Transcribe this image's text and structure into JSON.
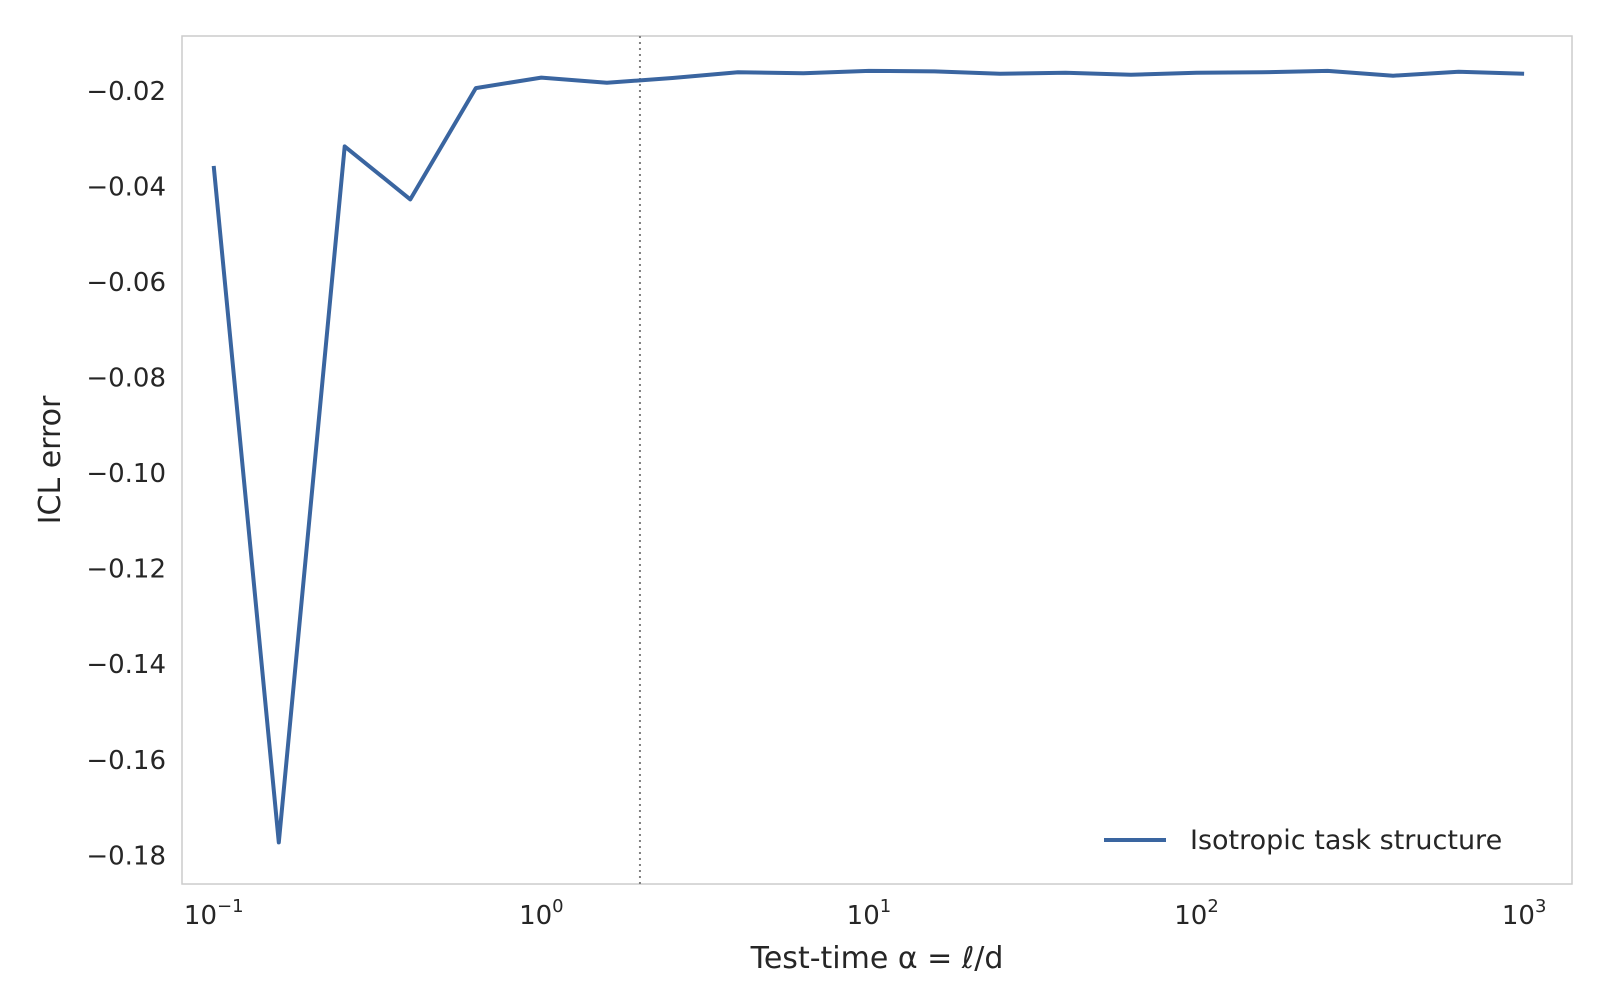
{
  "chart_data": {
    "type": "line",
    "xlabel": "Test-time α = ℓ/d",
    "ylabel": "ICL error",
    "xscale": "log",
    "xlim": [
      0.08,
      1400
    ],
    "ylim": [
      -0.186,
      -0.0085
    ],
    "grid": false,
    "legend_position": "bottom-right",
    "x_ticks": [
      {
        "value": 0.1,
        "base": "10",
        "exp": "−1"
      },
      {
        "value": 1,
        "base": "10",
        "exp": "0"
      },
      {
        "value": 10,
        "base": "10",
        "exp": "1"
      },
      {
        "value": 100,
        "base": "10",
        "exp": "2"
      },
      {
        "value": 1000,
        "base": "10",
        "exp": "3"
      }
    ],
    "y_ticks": [
      {
        "value": -0.02,
        "label": "−0.02"
      },
      {
        "value": -0.04,
        "label": "−0.04"
      },
      {
        "value": -0.06,
        "label": "−0.06"
      },
      {
        "value": -0.08,
        "label": "−0.08"
      },
      {
        "value": -0.1,
        "label": "−0.10"
      },
      {
        "value": -0.12,
        "label": "−0.12"
      },
      {
        "value": -0.14,
        "label": "−0.14"
      },
      {
        "value": -0.16,
        "label": "−0.16"
      },
      {
        "value": -0.18,
        "label": "−0.18"
      }
    ],
    "reference_line": {
      "x": 2,
      "style": "dotted",
      "color": "#808080"
    },
    "series": [
      {
        "name": "Isotropic task structure",
        "color": "#3a65a0",
        "x": [
          0.1,
          0.158,
          0.251,
          0.398,
          0.631,
          1.0,
          1.585,
          2.512,
          3.981,
          6.31,
          10.0,
          15.85,
          25.12,
          39.81,
          63.1,
          100.0,
          158.5,
          251.2,
          398.1,
          631.0,
          1000.0
        ],
        "y": [
          -0.0357,
          -0.1773,
          -0.0316,
          -0.0427,
          -0.0194,
          -0.0172,
          -0.0183,
          -0.0173,
          -0.0161,
          -0.0163,
          -0.0158,
          -0.0159,
          -0.0164,
          -0.0162,
          -0.0166,
          -0.0162,
          -0.0161,
          -0.0158,
          -0.0168,
          -0.016,
          -0.0164
        ]
      }
    ]
  }
}
